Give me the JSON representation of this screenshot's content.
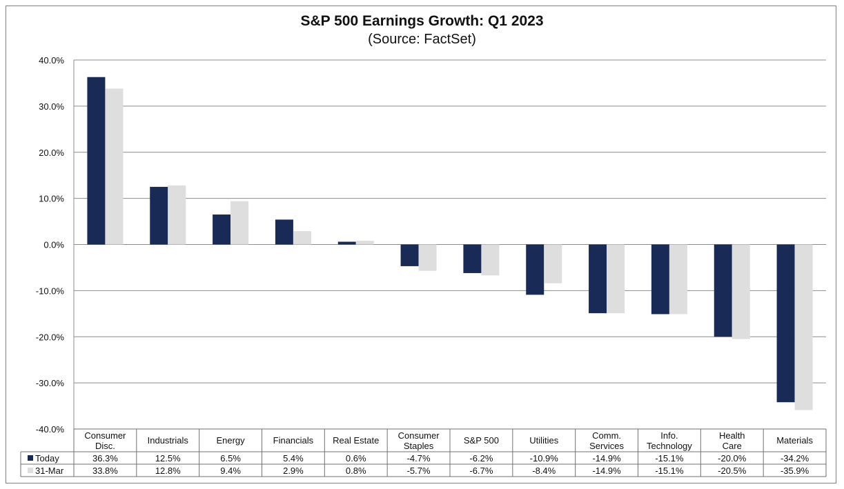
{
  "title": "S&P 500 Earnings Growth: Q1 2023",
  "subtitle": "(Source: FactSet)",
  "chart_data": {
    "type": "bar",
    "title": "S&P 500 Earnings Growth: Q1 2023",
    "subtitle": "(Source: FactSet)",
    "categories": [
      [
        "Consumer",
        "Disc."
      ],
      [
        "Industrials"
      ],
      [
        "Energy"
      ],
      [
        "Financials"
      ],
      [
        "Real Estate"
      ],
      [
        "Consumer",
        "Staples"
      ],
      [
        "S&P 500"
      ],
      [
        "Utilities"
      ],
      [
        "Comm.",
        "Services"
      ],
      [
        "Info.",
        "Technology"
      ],
      [
        "Health",
        "Care"
      ],
      [
        "Materials"
      ]
    ],
    "series": [
      {
        "name": "Today",
        "color": "#1a2a57",
        "values": [
          36.3,
          12.5,
          6.5,
          5.4,
          0.6,
          -4.7,
          -6.2,
          -10.9,
          -14.9,
          -15.1,
          -20.0,
          -34.2
        ],
        "labels": [
          "36.3%",
          "12.5%",
          "6.5%",
          "5.4%",
          "0.6%",
          "-4.7%",
          "-6.2%",
          "-10.9%",
          "-14.9%",
          "-15.1%",
          "-20.0%",
          "-34.2%"
        ]
      },
      {
        "name": "31-Mar",
        "color": "#dedede",
        "values": [
          33.8,
          12.8,
          9.4,
          2.9,
          0.8,
          -5.7,
          -6.7,
          -8.4,
          -14.9,
          -15.1,
          -20.5,
          -35.9
        ],
        "labels": [
          "33.8%",
          "12.8%",
          "9.4%",
          "2.9%",
          "0.8%",
          "-5.7%",
          "-6.7%",
          "-8.4%",
          "-14.9%",
          "-15.1%",
          "-20.5%",
          "-35.9%"
        ]
      }
    ],
    "ylim": [
      -40,
      40
    ],
    "yticks": [
      40,
      30,
      20,
      10,
      0,
      -10,
      -20,
      -30,
      -40
    ],
    "ytick_labels": [
      "40.0%",
      "30.0%",
      "20.0%",
      "10.0%",
      "0.0%",
      "-10.0%",
      "-20.0%",
      "-30.0%",
      "-40.0%"
    ],
    "grid": true,
    "legend": "data-table"
  }
}
